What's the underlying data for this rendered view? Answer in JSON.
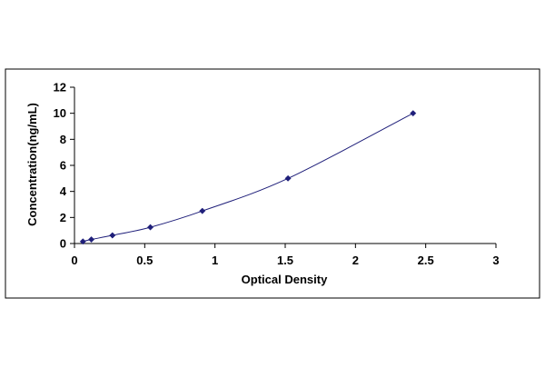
{
  "chart_data": {
    "type": "scatter",
    "title": "",
    "xlabel": "Optical Density",
    "ylabel": "Concentration(ng/mL)",
    "xlim": [
      0,
      3
    ],
    "ylim": [
      0,
      12
    ],
    "x_ticks": [
      "0",
      "0.5",
      "1",
      "1.5",
      "2",
      "2.5",
      "3"
    ],
    "y_ticks": [
      "0",
      "2",
      "4",
      "6",
      "8",
      "10",
      "12"
    ],
    "grid": false,
    "legend": "none",
    "colors": {
      "marker": "#1f1f7a",
      "line": "#1f1f7a",
      "frame": "#000000",
      "axis": "#000000"
    },
    "series": [
      {
        "x": [
          0.06,
          0.12,
          0.27,
          0.54,
          0.91,
          1.52,
          2.41
        ],
        "y": [
          0.156,
          0.312,
          0.625,
          1.25,
          2.5,
          5,
          10
        ],
        "trendline": "smooth"
      }
    ]
  }
}
